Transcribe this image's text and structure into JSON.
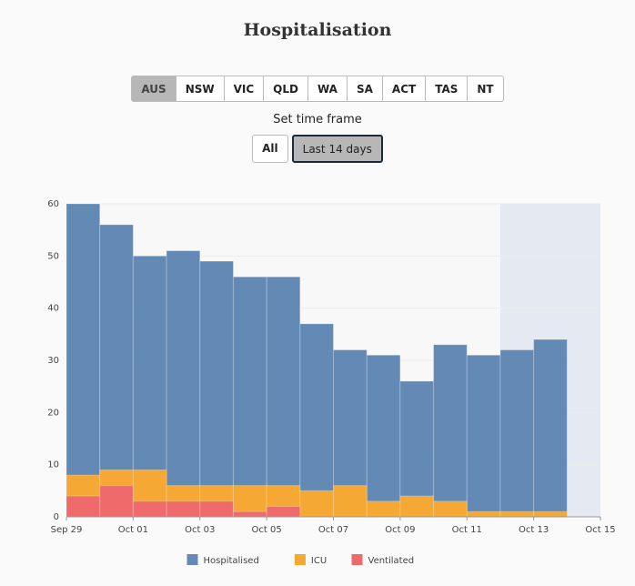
{
  "ui": {
    "regions": [
      "AUS",
      "NSW",
      "VIC",
      "QLD",
      "WA",
      "SA",
      "ACT",
      "TAS",
      "NT"
    ],
    "selected_region": 0,
    "timeframe_label": "Set time frame",
    "timeframes": [
      "All",
      "Last 14 days"
    ],
    "selected_timeframe": 1
  },
  "chart_data": {
    "type": "bar",
    "title": "Hospitalisation",
    "x": [
      "Sep 29",
      "Sep 30",
      "Oct 01",
      "Oct 02",
      "Oct 03",
      "Oct 04",
      "Oct 05",
      "Oct 06",
      "Oct 07",
      "Oct 08",
      "Oct 09",
      "Oct 10",
      "Oct 11",
      "Oct 12",
      "Oct 13"
    ],
    "series": [
      {
        "name": "Hospitalised",
        "color": "#6389b5",
        "values": [
          60,
          56,
          50,
          51,
          49,
          46,
          46,
          37,
          32,
          31,
          26,
          33,
          31,
          32,
          34
        ]
      },
      {
        "name": "ICU",
        "color": "#f5a833",
        "values": [
          8,
          9,
          9,
          6,
          6,
          6,
          6,
          5,
          6,
          3,
          4,
          3,
          1,
          1,
          1
        ]
      },
      {
        "name": "Ventilated",
        "color": "#ef6b6b",
        "values": [
          4,
          6,
          3,
          3,
          3,
          1,
          2,
          0,
          0,
          0,
          0,
          0,
          0,
          0,
          0
        ]
      }
    ],
    "xlim": [
      "Sep 29",
      "Oct 15"
    ],
    "xticks": [
      "Sep 29",
      "Oct 01",
      "Oct 03",
      "Oct 05",
      "Oct 07",
      "Oct 09",
      "Oct 11",
      "Oct 13",
      "Oct 15"
    ],
    "ylim": [
      0,
      60
    ],
    "yticks": [
      0,
      10,
      20,
      30,
      40,
      50,
      60
    ],
    "grid": true,
    "shaded_from": "Oct 12",
    "legend": "bottom"
  }
}
